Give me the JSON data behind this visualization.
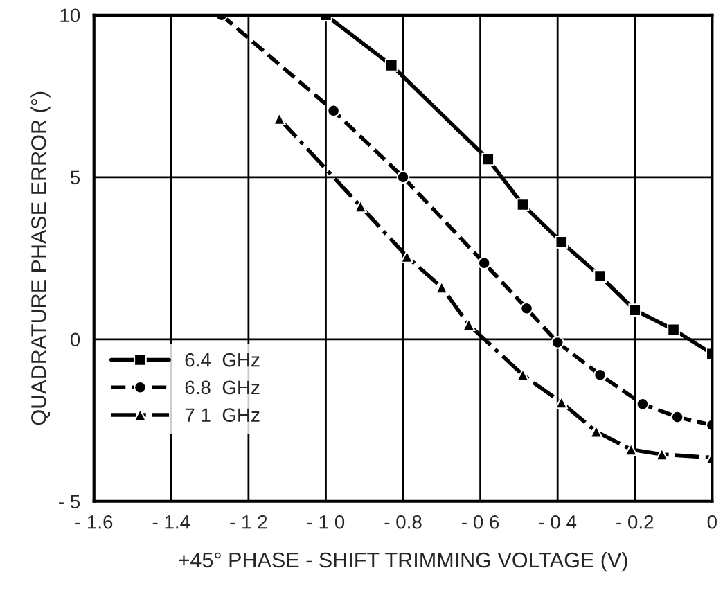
{
  "chart_data": {
    "type": "line",
    "xlabel": "+45° PHASE - SHIFT TRIMMING VOLTAGE (V)",
    "ylabel": "QUADRATURE PHASE ERROR (°)",
    "xlim": [
      -1.6,
      0
    ],
    "ylim": [
      -5,
      10
    ],
    "xticks": [
      {
        "value": -1.6,
        "label": "- 1.6"
      },
      {
        "value": -1.4,
        "label": "- 1.4"
      },
      {
        "value": -1.2,
        "label": "- 1 2"
      },
      {
        "value": -1.0,
        "label": "- 1 0"
      },
      {
        "value": -0.8,
        "label": "- 0.8"
      },
      {
        "value": -0.6,
        "label": "- 0 6"
      },
      {
        "value": -0.4,
        "label": "- 0 4"
      },
      {
        "value": -0.2,
        "label": "- 0.2"
      },
      0
    ],
    "yticks": [
      {
        "value": -5,
        "label": "- 5"
      },
      0,
      5,
      10
    ],
    "grid": true,
    "legend": "bottom left",
    "series": [
      {
        "name": "6.4  GHz",
        "color": "#000000",
        "marker": "square",
        "line_style": "solid",
        "x": [
          -1.0,
          -0.83,
          -0.58,
          -0.49,
          -0.39,
          -0.29,
          -0.2,
          -0.1,
          0
        ],
        "values": [
          10,
          8.45,
          5.55,
          4.15,
          3.0,
          1.95,
          0.9,
          0.3,
          -0.45
        ]
      },
      {
        "name": "6.8  GHz",
        "color": "#000000",
        "marker": "circle",
        "line_style": "dashed",
        "x": [
          -1.27,
          -0.98,
          -0.8,
          -0.59,
          -0.48,
          -0.4,
          -0.29,
          -0.18,
          -0.09,
          0
        ],
        "values": [
          10,
          7.05,
          5.0,
          2.35,
          0.95,
          -0.1,
          -1.1,
          -2.0,
          -2.4,
          -2.65
        ]
      },
      {
        "name": "7 1  GHz",
        "color": "#000000",
        "marker": "triangle",
        "line_style": "dashdot",
        "x": [
          -1.12,
          -0.91,
          -0.79,
          -0.7,
          -0.63,
          -0.49,
          -0.39,
          -0.3,
          -0.21,
          -0.13,
          0
        ],
        "values": [
          6.8,
          4.1,
          2.55,
          1.6,
          0.45,
          -1.1,
          -1.95,
          -2.85,
          -3.4,
          -3.55,
          -3.65
        ]
      }
    ]
  }
}
